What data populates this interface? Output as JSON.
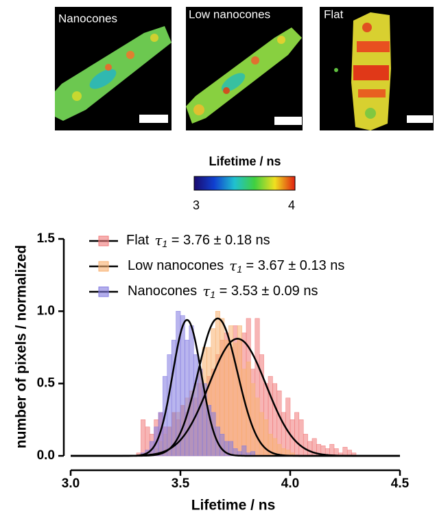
{
  "panels": [
    {
      "label": "Nanocones"
    },
    {
      "label": "Low nanocones"
    },
    {
      "label": "Flat"
    }
  ],
  "colorbar": {
    "title": "Lifetime / ns",
    "min": 3,
    "max": 4
  },
  "chart_data": {
    "type": "histogram",
    "xlabel": "Lifetime / ns",
    "ylabel": "number of pixels / normalized",
    "xlim": [
      3.0,
      4.5
    ],
    "ylim": [
      0,
      1.5
    ],
    "xticks": [
      {
        "value": 3.0,
        "label": "3.0"
      },
      {
        "value": 3.5,
        "label": "3.5"
      },
      {
        "value": 4.0,
        "label": "4.0"
      },
      {
        "value": 4.5,
        "label": "4.5"
      }
    ],
    "yticks": [
      {
        "value": 0,
        "label": "0.0"
      },
      {
        "value": 0.5,
        "label": "0.5"
      },
      {
        "value": 1.0,
        "label": "1.0"
      },
      {
        "value": 1.5,
        "label": "1.5"
      }
    ],
    "bins": [
      3.3,
      3.32,
      3.34,
      3.36,
      3.38,
      3.4,
      3.42,
      3.44,
      3.46,
      3.48,
      3.5,
      3.52,
      3.54,
      3.56,
      3.58,
      3.6,
      3.62,
      3.64,
      3.66,
      3.68,
      3.7,
      3.72,
      3.74,
      3.76,
      3.78,
      3.8,
      3.82,
      3.84,
      3.86,
      3.88,
      3.9,
      3.92,
      3.94,
      3.96,
      3.98,
      4.0,
      4.02,
      4.04,
      4.06,
      4.08,
      4.1,
      4.12,
      4.14,
      4.16,
      4.18,
      4.2,
      4.22,
      4.24,
      4.26,
      4.28,
      4.3
    ],
    "series": [
      {
        "name": "Flat",
        "color": "#f07878",
        "fit_label": {
          "symbol": "τ",
          "subscript": "1",
          "text": " = 3.76 ± 0.18 ns"
        },
        "fit": {
          "mean": 3.76,
          "sd": 0.13,
          "peak": 0.81
        },
        "values": [
          0.02,
          0.25,
          0.2,
          0.15,
          0.25,
          0.3,
          0.2,
          0.2,
          0.3,
          0.25,
          0.35,
          0.3,
          0.4,
          0.4,
          0.5,
          0.45,
          0.55,
          0.6,
          0.7,
          0.8,
          0.85,
          0.75,
          0.9,
          0.8,
          0.85,
          0.95,
          0.6,
          0.95,
          0.7,
          0.5,
          0.55,
          0.5,
          0.45,
          0.3,
          0.4,
          0.25,
          0.3,
          0.25,
          0.15,
          0.1,
          0.12,
          0.08,
          0.07,
          0.05,
          0.08,
          0.05,
          0.02,
          0.06,
          0.04,
          0.02
        ]
      },
      {
        "name": "Low nanocones",
        "color": "#f8b070",
        "fit_label": {
          "symbol": "τ",
          "subscript": "1",
          "text": " = 3.67 ± 0.13 ns"
        },
        "fit": {
          "mean": 3.67,
          "sd": 0.09,
          "peak": 0.95
        },
        "values": [
          0,
          0,
          0,
          0.02,
          0.05,
          0.1,
          0.15,
          0.2,
          0.3,
          0.3,
          0.35,
          0.4,
          0.45,
          0.5,
          0.6,
          0.75,
          0.75,
          0.88,
          1.0,
          0.95,
          0.8,
          0.9,
          0.78,
          0.9,
          0.6,
          0.65,
          0.5,
          0.4,
          0.3,
          0.25,
          0.15,
          0.12,
          0.08,
          0.05,
          0.04,
          0.02,
          0,
          0,
          0,
          0,
          0,
          0,
          0,
          0,
          0,
          0,
          0,
          0,
          0,
          0
        ]
      },
      {
        "name": "Nanocones",
        "color": "#8078e0",
        "fit_label": {
          "symbol": "τ",
          "subscript": "1",
          "text": " = 3.53 ± 0.09 ns"
        },
        "fit": {
          "mean": 3.53,
          "sd": 0.065,
          "peak": 0.94
        },
        "values": [
          0,
          0.02,
          0.04,
          0.1,
          0.2,
          0.3,
          0.55,
          0.7,
          0.8,
          1.0,
          0.97,
          0.8,
          0.9,
          0.7,
          0.6,
          0.5,
          0.35,
          0.3,
          0.2,
          0.15,
          0.1,
          0.1,
          0.05,
          0.03,
          0.07,
          0.02,
          0.03,
          0,
          0,
          0,
          0,
          0,
          0,
          0,
          0,
          0,
          0,
          0,
          0,
          0,
          0,
          0,
          0,
          0,
          0,
          0,
          0,
          0,
          0,
          0
        ]
      }
    ]
  }
}
